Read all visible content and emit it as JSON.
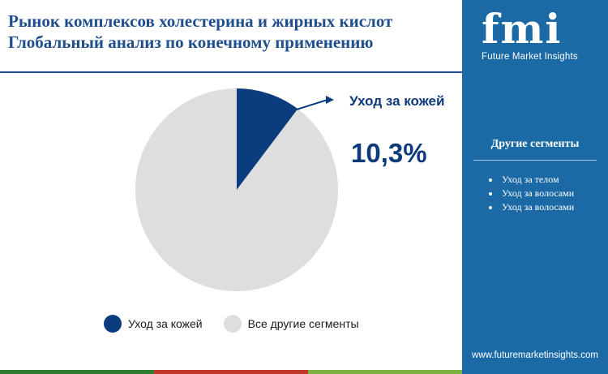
{
  "header": {
    "title_line1": "Рынок комплексов холестерина и жирных кислот",
    "title_line2": "Глобальный анализ по конечному применению"
  },
  "chart_data": {
    "type": "pie",
    "categories": [
      "Уход за кожей",
      "Все другие сегменты"
    ],
    "values": [
      10.3,
      89.7
    ],
    "colors": [
      "#0b3d7e",
      "#dedede"
    ],
    "callout": {
      "label": "Уход за кожей",
      "value_text": "10,3%"
    }
  },
  "legend": {
    "items": [
      {
        "label": "Уход за кожей",
        "color": "#0b3d7e"
      },
      {
        "label": "Все другие сегменты",
        "color": "#dedede"
      }
    ]
  },
  "sidebar": {
    "logo_text": "fmi",
    "logo_subtitle": "Future Market Insights",
    "segments_heading": "Другие сегменты",
    "segments": [
      "Уход за телом",
      "Уход за волосами",
      "Уход за волосами"
    ],
    "website": "www.futuremarketinsights.com"
  },
  "colors": {
    "brand_blue": "#1b6aa5",
    "title_blue": "#1f4e8c",
    "bottom_bar": [
      "#2e7d32",
      "#c0392b",
      "#7cb342",
      "#1b6aa5"
    ]
  }
}
